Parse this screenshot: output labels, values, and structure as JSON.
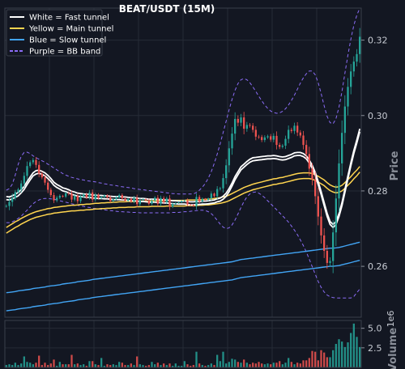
{
  "chart_data": {
    "type": "candlestick",
    "title": "BEAT/USDT (15M)",
    "ylabel": "Price",
    "volume_label": "Volume",
    "volume_exponent_label": "1e6",
    "ylim": [
      0.2465,
      0.3285
    ],
    "yticks": [
      0.26,
      0.28,
      0.3,
      0.32
    ],
    "ytick_labels": [
      "0.26",
      "0.28",
      "0.30",
      "0.32"
    ],
    "volume_ylim": [
      0,
      6.0
    ],
    "volume_ticks": [
      2.5,
      5.0
    ],
    "volume_tick_labels": [
      "2.5",
      "5.0"
    ],
    "grid": true,
    "legend_position": "top-left",
    "colors": {
      "up": "#26a69a",
      "down": "#ef5350",
      "fast": "#ffffff",
      "main": "#ffd54f",
      "slow": "#42a5f5",
      "bb": "#8b6cf6"
    },
    "legend": [
      {
        "label": "White = Fast tunnel",
        "color": "#ffffff",
        "style": "solid"
      },
      {
        "label": "Yellow = Main tunnel",
        "color": "#ffd54f",
        "style": "solid"
      },
      {
        "label": "Blue = Slow tunnel",
        "color": "#42a5f5",
        "style": "solid"
      },
      {
        "label": "Purple = BB band",
        "color": "#8b6cf6",
        "style": "dashed"
      }
    ],
    "close": [
      0.276,
      0.2771,
      0.2781,
      0.2797,
      0.2804,
      0.282,
      0.284,
      0.2866,
      0.2876,
      0.2882,
      0.2869,
      0.2846,
      0.2836,
      0.2822,
      0.2803,
      0.2789,
      0.2775,
      0.2782,
      0.2787,
      0.2785,
      0.2794,
      0.2793,
      0.2777,
      0.2787,
      0.2773,
      0.2785,
      0.2791,
      0.2783,
      0.2796,
      0.2777,
      0.279,
      0.2781,
      0.2784,
      0.2788,
      0.2783,
      0.2773,
      0.2778,
      0.2783,
      0.2789,
      0.278,
      0.2774,
      0.2779,
      0.2772,
      0.2782,
      0.2765,
      0.2776,
      0.2778,
      0.2775,
      0.2766,
      0.2774,
      0.2782,
      0.2766,
      0.2781,
      0.277,
      0.278,
      0.2758,
      0.2766,
      0.2768,
      0.277,
      0.2773,
      0.2775,
      0.2764,
      0.2763,
      0.276,
      0.2784,
      0.2772,
      0.2779,
      0.2776,
      0.278,
      0.2793,
      0.2786,
      0.2805,
      0.2807,
      0.2834,
      0.2868,
      0.2913,
      0.2952,
      0.2991,
      0.2981,
      0.2995,
      0.2965,
      0.2975,
      0.2973,
      0.2962,
      0.2944,
      0.2943,
      0.2935,
      0.2942,
      0.2945,
      0.2936,
      0.2946,
      0.2922,
      0.2917,
      0.292,
      0.2938,
      0.2962,
      0.2959,
      0.2973,
      0.2955,
      0.2947,
      0.2922,
      0.2898,
      0.2859,
      0.283,
      0.2786,
      0.2732,
      0.2682,
      0.2641,
      0.2609,
      0.2614,
      0.269,
      0.278,
      0.2873,
      0.2954,
      0.3024,
      0.3076,
      0.3117,
      0.3143,
      0.3163,
      0.3209
    ],
    "range": [
      0.0012,
      0.0032,
      0.0035,
      0.0016,
      0.0012,
      0.0023,
      0.0027,
      0.0034,
      0.0015,
      0.0016,
      0.0023,
      0.0028,
      0.0015,
      0.0019,
      0.0025,
      0.0017,
      0.002,
      0.0015,
      0.0011,
      0.0008,
      0.0011,
      0.0014,
      0.0021,
      0.0013,
      0.002,
      0.0015,
      0.001,
      0.0013,
      0.0018,
      0.0022,
      0.0016,
      0.0012,
      0.0007,
      0.0008,
      0.0009,
      0.0014,
      0.0008,
      0.0009,
      0.0011,
      0.0013,
      0.001,
      0.0008,
      0.0011,
      0.0014,
      0.0023,
      0.0015,
      0.0006,
      0.0006,
      0.0013,
      0.0011,
      0.0012,
      0.002,
      0.0019,
      0.0014,
      0.0014,
      0.0025,
      0.001,
      0.0006,
      0.0006,
      0.0006,
      0.0005,
      0.0014,
      0.0004,
      0.0006,
      0.0028,
      0.0015,
      0.001,
      0.0006,
      0.0007,
      0.0016,
      0.0009,
      0.0022,
      0.0011,
      0.0033,
      0.0046,
      0.0055,
      0.0049,
      0.005,
      0.0027,
      0.0027,
      0.0042,
      0.0023,
      0.0015,
      0.002,
      0.0027,
      0.0014,
      0.0016,
      0.0016,
      0.0012,
      0.0017,
      0.002,
      0.0034,
      0.0017,
      0.0013,
      0.0025,
      0.0033,
      0.0016,
      0.0023,
      0.0027,
      0.0018,
      0.0034,
      0.0036,
      0.0055,
      0.0043,
      0.0059,
      0.0066,
      0.0062,
      0.0054,
      0.0044,
      0.0028,
      0.0092,
      0.0103,
      0.0105,
      0.0094,
      0.0085,
      0.0067,
      0.0056,
      0.004,
      0.0037,
      0.0066
    ],
    "volume": [
      0.3,
      0.4,
      0.3,
      0.6,
      0.3,
      0.5,
      1.4,
      0.7,
      0.6,
      0.4,
      0.6,
      1.5,
      0.3,
      0.6,
      0.3,
      0.5,
      1.0,
      0.2,
      0.7,
      0.4,
      0.4,
      0.4,
      1.6,
      0.4,
      0.5,
      0.3,
      0.4,
      0.2,
      0.8,
      0.8,
      0.4,
      0.3,
      1.2,
      0.2,
      0.4,
      0.3,
      0.4,
      0.3,
      0.7,
      0.6,
      0.3,
      0.3,
      0.5,
      0.3,
      1.4,
      0.4,
      0.3,
      0.2,
      0.3,
      0.7,
      0.4,
      0.6,
      0.3,
      0.5,
      0.3,
      0.5,
      0.2,
      0.5,
      0.2,
      0.2,
      0.8,
      0.4,
      0.2,
      0.3,
      2.0,
      0.5,
      0.3,
      0.2,
      0.3,
      0.5,
      0.3,
      1.6,
      0.8,
      2.0,
      0.5,
      0.7,
      1.1,
      1.0,
      0.7,
      0.6,
      1.0,
      0.6,
      0.4,
      0.6,
      0.5,
      0.7,
      0.5,
      0.4,
      0.5,
      0.4,
      0.6,
      0.6,
      0.8,
      0.4,
      0.6,
      1.2,
      0.7,
      0.4,
      0.6,
      0.5,
      0.9,
      0.9,
      1.2,
      2.1,
      2.0,
      0.9,
      2.2,
      1.9,
      1.3,
      1.3,
      2.2,
      3.0,
      3.6,
      3.3,
      2.6,
      3.2,
      4.4,
      5.6,
      3.9,
      2.6
    ],
    "fast_upper": [
      0.2785,
      0.2784,
      0.2787,
      0.2791,
      0.2796,
      0.2803,
      0.2812,
      0.2825,
      0.2837,
      0.2848,
      0.2854,
      0.2855,
      0.2852,
      0.2848,
      0.2841,
      0.2833,
      0.2823,
      0.2817,
      0.2813,
      0.2808,
      0.2806,
      0.2803,
      0.2799,
      0.2797,
      0.2794,
      0.2793,
      0.2792,
      0.2791,
      0.2791,
      0.2789,
      0.2789,
      0.2788,
      0.2788,
      0.2787,
      0.2787,
      0.2786,
      0.2785,
      0.2785,
      0.2785,
      0.2784,
      0.2784,
      0.2783,
      0.2782,
      0.2782,
      0.2781,
      0.278,
      0.278,
      0.2779,
      0.2778,
      0.2778,
      0.2778,
      0.2777,
      0.2777,
      0.2776,
      0.2776,
      0.2775,
      0.2774,
      0.2774,
      0.2773,
      0.2773,
      0.2773,
      0.2772,
      0.2771,
      0.2771,
      0.2772,
      0.2772,
      0.2773,
      0.2773,
      0.2774,
      0.2775,
      0.2776,
      0.2779,
      0.2781,
      0.2786,
      0.2794,
      0.2806,
      0.2821,
      0.2838,
      0.2851,
      0.2864,
      0.2871,
      0.2878,
      0.2884,
      0.2888,
      0.2889,
      0.289,
      0.2891,
      0.2892,
      0.2893,
      0.2893,
      0.2894,
      0.2893,
      0.2891,
      0.289,
      0.2891,
      0.2894,
      0.2897,
      0.2901,
      0.2902,
      0.2902,
      0.2899,
      0.2893,
      0.2882,
      0.2868,
      0.2849,
      0.2825,
      0.2798,
      0.2769,
      0.2741,
      0.2719,
      0.2711,
      0.2719,
      0.274,
      0.2769,
      0.2804,
      0.284,
      0.2875,
      0.2907,
      0.2935,
      0.2965
    ],
    "fast_lower": [
      0.2777,
      0.2776,
      0.2779,
      0.2783,
      0.2787,
      0.2795,
      0.2804,
      0.2817,
      0.2829,
      0.284,
      0.2845,
      0.2847,
      0.2844,
      0.284,
      0.2833,
      0.2825,
      0.2815,
      0.2809,
      0.2805,
      0.28,
      0.2798,
      0.2795,
      0.2791,
      0.2789,
      0.2786,
      0.2785,
      0.2784,
      0.2783,
      0.2783,
      0.2781,
      0.2781,
      0.278,
      0.278,
      0.2779,
      0.2779,
      0.2778,
      0.2777,
      0.2777,
      0.2777,
      0.2776,
      0.2776,
      0.2775,
      0.2774,
      0.2774,
      0.2773,
      0.2772,
      0.2772,
      0.2771,
      0.277,
      0.277,
      0.277,
      0.2769,
      0.2769,
      0.2768,
      0.2768,
      0.2767,
      0.2766,
      0.2766,
      0.2765,
      0.2765,
      0.2765,
      0.2764,
      0.2763,
      0.2763,
      0.2764,
      0.2764,
      0.2765,
      0.2765,
      0.2766,
      0.2767,
      0.2768,
      0.2771,
      0.2773,
      0.2778,
      0.2786,
      0.2798,
      0.2813,
      0.283,
      0.2843,
      0.2856,
      0.2863,
      0.287,
      0.2876,
      0.288,
      0.2881,
      0.2882,
      0.2883,
      0.2884,
      0.2885,
      0.2885,
      0.2886,
      0.2885,
      0.2883,
      0.2882,
      0.2883,
      0.2886,
      0.2889,
      0.2893,
      0.2894,
      0.2894,
      0.2891,
      0.2885,
      0.2874,
      0.286,
      0.2841,
      0.2817,
      0.279,
      0.2761,
      0.2733,
      0.2711,
      0.2703,
      0.2711,
      0.2732,
      0.2761,
      0.2796,
      0.2832,
      0.2867,
      0.2899,
      0.2927,
      0.2957
    ],
    "main_upper": [
      0.2703,
      0.2708,
      0.2713,
      0.2718,
      0.2722,
      0.2727,
      0.2731,
      0.2735,
      0.2739,
      0.2742,
      0.2745,
      0.2747,
      0.2749,
      0.2751,
      0.2753,
      0.2754,
      0.2756,
      0.2757,
      0.2758,
      0.2759,
      0.276,
      0.2761,
      0.2762,
      0.2762,
      0.2763,
      0.2764,
      0.2764,
      0.2765,
      0.2765,
      0.2766,
      0.2767,
      0.2767,
      0.2768,
      0.2768,
      0.2769,
      0.2769,
      0.277,
      0.277,
      0.2771,
      0.2771,
      0.2771,
      0.2772,
      0.2772,
      0.2772,
      0.2773,
      0.2773,
      0.2773,
      0.2773,
      0.2773,
      0.2774,
      0.2774,
      0.2774,
      0.2774,
      0.2774,
      0.2775,
      0.2775,
      0.2775,
      0.2775,
      0.2775,
      0.2775,
      0.2775,
      0.2776,
      0.2776,
      0.2776,
      0.2776,
      0.2777,
      0.2777,
      0.2778,
      0.2778,
      0.2779,
      0.278,
      0.2781,
      0.2782,
      0.2784,
      0.2786,
      0.2789,
      0.2793,
      0.2797,
      0.2801,
      0.2805,
      0.2809,
      0.2812,
      0.2815,
      0.2818,
      0.282,
      0.2822,
      0.2824,
      0.2826,
      0.2828,
      0.283,
      0.2832,
      0.2833,
      0.2835,
      0.2836,
      0.2838,
      0.284,
      0.2842,
      0.2844,
      0.2846,
      0.2847,
      0.2848,
      0.2848,
      0.2848,
      0.2846,
      0.2843,
      0.2839,
      0.2834,
      0.2829,
      0.2822,
      0.2816,
      0.2812,
      0.281,
      0.2811,
      0.2815,
      0.2822,
      0.283,
      0.2838,
      0.2847,
      0.2855,
      0.2865
    ],
    "main_lower": [
      0.2688,
      0.2693,
      0.2698,
      0.2703,
      0.2707,
      0.2712,
      0.2716,
      0.272,
      0.2724,
      0.2727,
      0.273,
      0.2732,
      0.2734,
      0.2736,
      0.2738,
      0.2739,
      0.2741,
      0.2742,
      0.2743,
      0.2744,
      0.2745,
      0.2746,
      0.2747,
      0.2747,
      0.2748,
      0.2749,
      0.2749,
      0.275,
      0.275,
      0.2751,
      0.2752,
      0.2752,
      0.2753,
      0.2753,
      0.2754,
      0.2754,
      0.2755,
      0.2755,
      0.2756,
      0.2756,
      0.2756,
      0.2757,
      0.2757,
      0.2757,
      0.2758,
      0.2758,
      0.2758,
      0.2758,
      0.2758,
      0.2759,
      0.2759,
      0.2759,
      0.2759,
      0.2759,
      0.276,
      0.276,
      0.276,
      0.276,
      0.276,
      0.276,
      0.276,
      0.2761,
      0.2761,
      0.2761,
      0.2761,
      0.2762,
      0.2762,
      0.2763,
      0.2763,
      0.2764,
      0.2765,
      0.2766,
      0.2767,
      0.2769,
      0.2771,
      0.2774,
      0.2778,
      0.2782,
      0.2786,
      0.279,
      0.2794,
      0.2797,
      0.28,
      0.2803,
      0.2805,
      0.2807,
      0.2809,
      0.2811,
      0.2813,
      0.2815,
      0.2817,
      0.2818,
      0.282,
      0.2821,
      0.2823,
      0.2825,
      0.2827,
      0.2829,
      0.2831,
      0.2832,
      0.2833,
      0.2833,
      0.2833,
      0.2831,
      0.2828,
      0.2824,
      0.2819,
      0.2814,
      0.2807,
      0.2801,
      0.2797,
      0.2795,
      0.2796,
      0.28,
      0.2807,
      0.2815,
      0.2823,
      0.2832,
      0.284,
      0.285
    ],
    "slow_upper": [
      0.253,
      0.2531,
      0.2532,
      0.2533,
      0.2535,
      0.2536,
      0.2537,
      0.2538,
      0.2539,
      0.2541,
      0.2542,
      0.2543,
      0.2544,
      0.2545,
      0.2547,
      0.2548,
      0.2549,
      0.255,
      0.2551,
      0.2553,
      0.2554,
      0.2555,
      0.2556,
      0.2557,
      0.2559,
      0.256,
      0.2561,
      0.2562,
      0.2563,
      0.2565,
      0.2566,
      0.2567,
      0.2568,
      0.2569,
      0.257,
      0.2571,
      0.2572,
      0.2573,
      0.2574,
      0.2575,
      0.2576,
      0.2577,
      0.2578,
      0.2579,
      0.258,
      0.2581,
      0.2582,
      0.2583,
      0.2584,
      0.2585,
      0.2586,
      0.2587,
      0.2588,
      0.2589,
      0.259,
      0.2591,
      0.2592,
      0.2593,
      0.2594,
      0.2595,
      0.2596,
      0.2597,
      0.2598,
      0.2599,
      0.26,
      0.2601,
      0.2602,
      0.2603,
      0.2604,
      0.2605,
      0.2606,
      0.2607,
      0.2608,
      0.2609,
      0.261,
      0.2611,
      0.2612,
      0.2614,
      0.2616,
      0.2618,
      0.2619,
      0.262,
      0.2621,
      0.2622,
      0.2623,
      0.2624,
      0.2625,
      0.2626,
      0.2627,
      0.2628,
      0.2629,
      0.263,
      0.2631,
      0.2632,
      0.2633,
      0.2634,
      0.2635,
      0.2636,
      0.2637,
      0.2638,
      0.2639,
      0.264,
      0.2641,
      0.2642,
      0.2643,
      0.2644,
      0.2645,
      0.2646,
      0.2647,
      0.2648,
      0.2648,
      0.2649,
      0.265,
      0.2652,
      0.2654,
      0.2656,
      0.2658,
      0.266,
      0.2662,
      0.2664
    ],
    "slow_lower": [
      0.2482,
      0.2483,
      0.2484,
      0.2485,
      0.2487,
      0.2488,
      0.2489,
      0.249,
      0.2491,
      0.2493,
      0.2494,
      0.2495,
      0.2496,
      0.2497,
      0.2499,
      0.25,
      0.2501,
      0.2502,
      0.2503,
      0.2505,
      0.2506,
      0.2507,
      0.2508,
      0.2509,
      0.2511,
      0.2512,
      0.2513,
      0.2514,
      0.2515,
      0.2517,
      0.2518,
      0.2519,
      0.252,
      0.2521,
      0.2522,
      0.2523,
      0.2524,
      0.2525,
      0.2526,
      0.2527,
      0.2528,
      0.2529,
      0.253,
      0.2531,
      0.2532,
      0.2533,
      0.2534,
      0.2535,
      0.2536,
      0.2537,
      0.2538,
      0.2539,
      0.254,
      0.2541,
      0.2542,
      0.2543,
      0.2544,
      0.2545,
      0.2546,
      0.2547,
      0.2548,
      0.2549,
      0.255,
      0.2551,
      0.2552,
      0.2553,
      0.2554,
      0.2555,
      0.2556,
      0.2557,
      0.2558,
      0.2559,
      0.256,
      0.2561,
      0.2562,
      0.2563,
      0.2564,
      0.2566,
      0.2568,
      0.257,
      0.2571,
      0.2572,
      0.2573,
      0.2574,
      0.2575,
      0.2576,
      0.2577,
      0.2578,
      0.2579,
      0.258,
      0.2581,
      0.2582,
      0.2583,
      0.2584,
      0.2585,
      0.2586,
      0.2587,
      0.2588,
      0.2589,
      0.259,
      0.2591,
      0.2592,
      0.2593,
      0.2594,
      0.2595,
      0.2596,
      0.2597,
      0.2598,
      0.2599,
      0.26,
      0.26,
      0.2601,
      0.2602,
      0.2604,
      0.2606,
      0.2608,
      0.261,
      0.2612,
      0.2614,
      0.2616
    ],
    "bb_upper": [
      0.2802,
      0.2806,
      0.2818,
      0.2842,
      0.2871,
      0.2892,
      0.2902,
      0.2903,
      0.2899,
      0.2893,
      0.2888,
      0.2884,
      0.288,
      0.2876,
      0.2871,
      0.2866,
      0.2861,
      0.2856,
      0.2851,
      0.2846,
      0.2842,
      0.2839,
      0.2836,
      0.2834,
      0.2832,
      0.283,
      0.2829,
      0.2827,
      0.2826,
      0.2825,
      0.2824,
      0.2822,
      0.2821,
      0.2819,
      0.2818,
      0.2816,
      0.2815,
      0.2814,
      0.2812,
      0.2811,
      0.281,
      0.2809,
      0.2808,
      0.2806,
      0.2805,
      0.2804,
      0.2803,
      0.2802,
      0.2801,
      0.28,
      0.2799,
      0.2798,
      0.2797,
      0.2796,
      0.2795,
      0.2794,
      0.2793,
      0.2793,
      0.2792,
      0.2792,
      0.2792,
      0.2792,
      0.2792,
      0.2792,
      0.2796,
      0.2802,
      0.281,
      0.282,
      0.2834,
      0.2851,
      0.2873,
      0.2898,
      0.2925,
      0.2955,
      0.2985,
      0.3015,
      0.3043,
      0.3067,
      0.3085,
      0.3095,
      0.3098,
      0.3095,
      0.3087,
      0.3076,
      0.3064,
      0.3051,
      0.3039,
      0.3028,
      0.3019,
      0.3012,
      0.3008,
      0.3006,
      0.3007,
      0.3011,
      0.3018,
      0.3028,
      0.304,
      0.3054,
      0.307,
      0.3086,
      0.31,
      0.3111,
      0.3118,
      0.3118,
      0.3108,
      0.3087,
      0.3058,
      0.3026,
      0.2998,
      0.2981,
      0.2978,
      0.2992,
      0.3022,
      0.3064,
      0.3112,
      0.316,
      0.3203,
      0.3239,
      0.3266,
      0.3285
    ],
    "bb_lower": [
      0.2716,
      0.2716,
      0.2718,
      0.2722,
      0.2727,
      0.2733,
      0.2741,
      0.2749,
      0.2758,
      0.2766,
      0.2772,
      0.2776,
      0.2779,
      0.278,
      0.278,
      0.2779,
      0.2778,
      0.2776,
      0.2774,
      0.2772,
      0.277,
      0.2768,
      0.2766,
      0.2764,
      0.2762,
      0.276,
      0.2759,
      0.2757,
      0.2756,
      0.2754,
      0.2753,
      0.2752,
      0.2751,
      0.275,
      0.2749,
      0.2748,
      0.2747,
      0.2746,
      0.2745,
      0.2745,
      0.2744,
      0.2744,
      0.2743,
      0.2743,
      0.2743,
      0.2742,
      0.2742,
      0.2742,
      0.2742,
      0.2742,
      0.2742,
      0.2742,
      0.2742,
      0.2742,
      0.2742,
      0.2742,
      0.2743,
      0.2743,
      0.2743,
      0.2744,
      0.2745,
      0.2745,
      0.2746,
      0.2747,
      0.2748,
      0.2749,
      0.2749,
      0.2748,
      0.2745,
      0.274,
      0.2732,
      0.2722,
      0.2712,
      0.2704,
      0.27,
      0.2702,
      0.271,
      0.2723,
      0.2739,
      0.2756,
      0.2772,
      0.2784,
      0.2792,
      0.2796,
      0.2797,
      0.2794,
      0.2789,
      0.2782,
      0.2774,
      0.2766,
      0.2758,
      0.275,
      0.2742,
      0.2734,
      0.2726,
      0.2717,
      0.2707,
      0.2696,
      0.2684,
      0.267,
      0.2655,
      0.2638,
      0.2619,
      0.2599,
      0.2579,
      0.256,
      0.2544,
      0.2532,
      0.2524,
      0.2519,
      0.2517,
      0.2516,
      0.2516,
      0.2516,
      0.2516,
      0.2516,
      0.2516,
      0.252,
      0.253,
      0.254
    ]
  }
}
